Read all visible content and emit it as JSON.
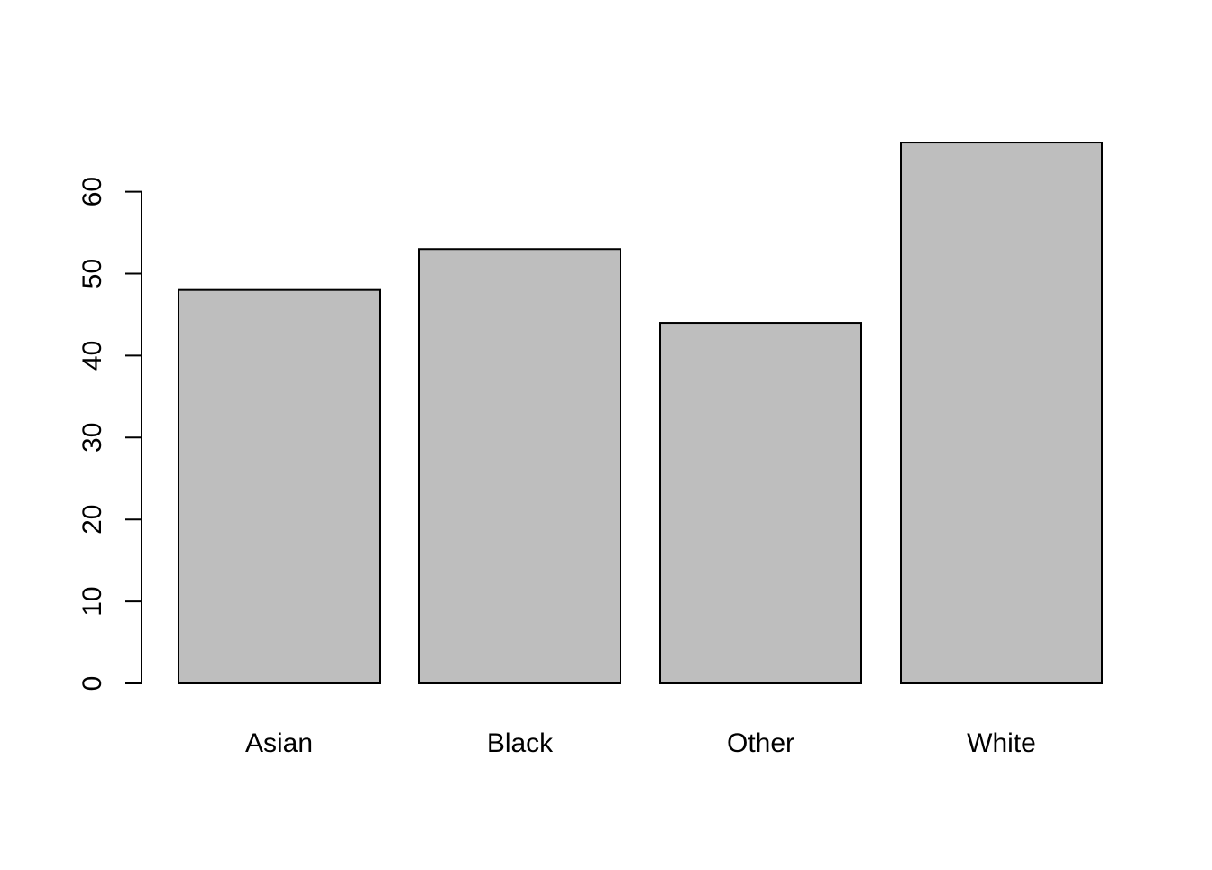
{
  "chart_data": {
    "type": "bar",
    "categories": [
      "Asian",
      "Black",
      "Other",
      "White"
    ],
    "values": [
      48,
      53,
      44,
      66
    ],
    "title": "",
    "xlabel": "",
    "ylabel": "",
    "ylim": [
      0,
      66
    ],
    "yticks": [
      0,
      10,
      20,
      30,
      40,
      50,
      60
    ],
    "grid": false,
    "legend": "none",
    "bar_color": "#bebebe",
    "bar_border_color": "#000000",
    "axis_color": "#000000",
    "background": "#ffffff"
  }
}
